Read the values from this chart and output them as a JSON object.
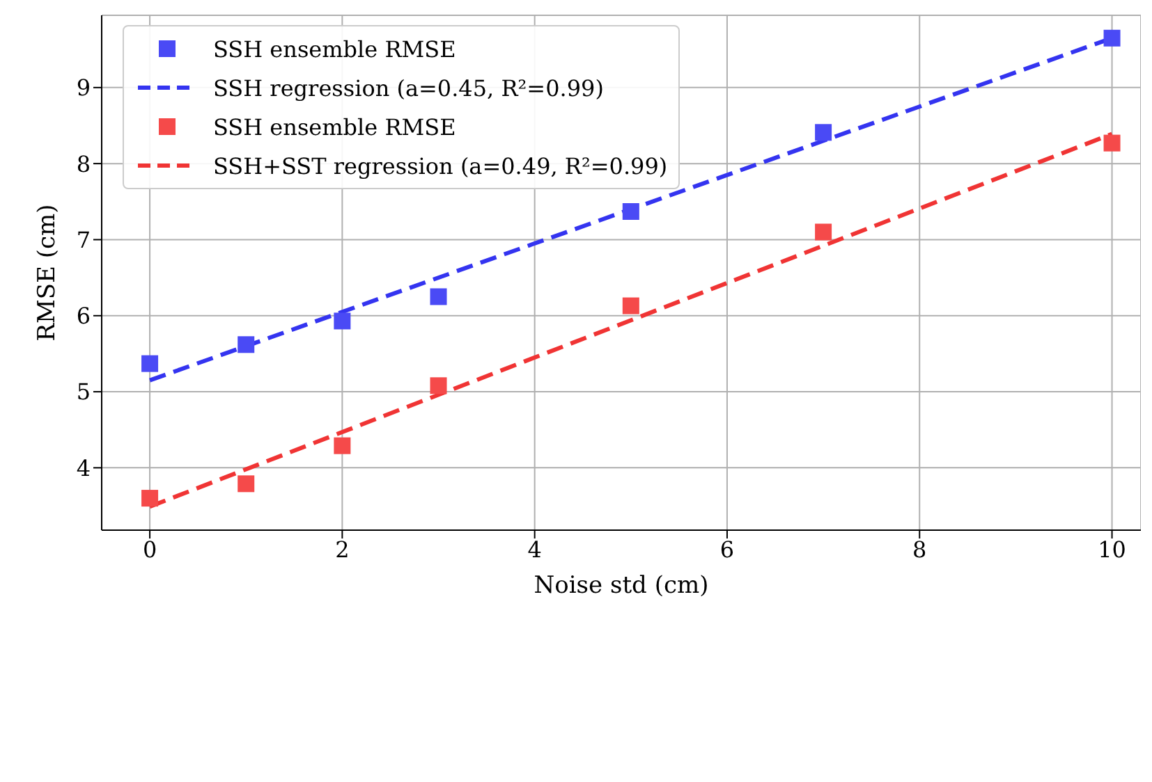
{
  "chart_data": {
    "type": "scatter",
    "xlabel": "Noise std (cm)",
    "ylabel": "RMSE (cm)",
    "xlim": [
      -0.5,
      10.3
    ],
    "ylim": [
      3.18,
      9.95
    ],
    "xticks": [
      0,
      2,
      4,
      6,
      8,
      10
    ],
    "yticks": [
      4,
      5,
      6,
      7,
      8,
      9
    ],
    "grid": true,
    "legend": "top left",
    "series": [
      {
        "name": "SSH ensemble RMSE",
        "type": "scatter",
        "marker": "square",
        "color": "#4a4af5",
        "x": [
          0,
          1,
          2,
          3,
          5,
          7,
          10
        ],
        "values": [
          5.37,
          5.62,
          5.93,
          6.25,
          7.37,
          8.41,
          9.65
        ]
      },
      {
        "name": "SSH regression (a=0.45, R²=0.99)",
        "type": "line",
        "line_style": "dashed",
        "marker": "none",
        "color": "#3434f0",
        "x": [
          0,
          10
        ],
        "values": [
          5.15,
          9.65
        ]
      },
      {
        "name": "SSH ensemble RMSE",
        "type": "scatter",
        "marker": "square",
        "color": "#f54a4a",
        "x": [
          0,
          1,
          2,
          3,
          5,
          7,
          10
        ],
        "values": [
          3.6,
          3.79,
          4.29,
          5.08,
          6.13,
          7.1,
          8.27
        ]
      },
      {
        "name": "SSH+SST regression (a=0.49, R²=0.99)",
        "type": "line",
        "line_style": "dashed",
        "marker": "none",
        "color": "#f03434",
        "x": [
          0,
          10
        ],
        "values": [
          3.49,
          8.39
        ]
      }
    ]
  }
}
